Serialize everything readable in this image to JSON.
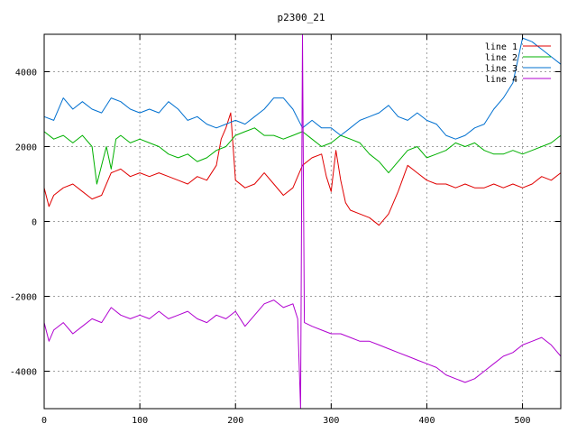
{
  "chart_data": {
    "type": "line",
    "title": "p2300_21",
    "xlabel": "",
    "ylabel": "",
    "xlim": [
      0,
      540
    ],
    "ylim": [
      -5000,
      5000
    ],
    "x_ticks": [
      0,
      100,
      200,
      300,
      400,
      500
    ],
    "y_ticks": [
      -4000,
      -2000,
      0,
      2000,
      4000
    ],
    "grid": true,
    "legend_position": "top-right",
    "series": [
      {
        "name": "line 1",
        "color": "#e00000",
        "points": [
          [
            0,
            900
          ],
          [
            5,
            400
          ],
          [
            10,
            700
          ],
          [
            20,
            900
          ],
          [
            30,
            1000
          ],
          [
            40,
            800
          ],
          [
            50,
            600
          ],
          [
            60,
            700
          ],
          [
            70,
            1300
          ],
          [
            80,
            1400
          ],
          [
            90,
            1200
          ],
          [
            100,
            1300
          ],
          [
            110,
            1200
          ],
          [
            120,
            1300
          ],
          [
            130,
            1200
          ],
          [
            140,
            1100
          ],
          [
            150,
            1000
          ],
          [
            160,
            1200
          ],
          [
            170,
            1100
          ],
          [
            180,
            1500
          ],
          [
            185,
            2200
          ],
          [
            190,
            2500
          ],
          [
            195,
            2900
          ],
          [
            200,
            1100
          ],
          [
            210,
            900
          ],
          [
            220,
            1000
          ],
          [
            230,
            1300
          ],
          [
            240,
            1000
          ],
          [
            250,
            700
          ],
          [
            260,
            900
          ],
          [
            265,
            1200
          ],
          [
            270,
            1500
          ],
          [
            280,
            1700
          ],
          [
            290,
            1800
          ],
          [
            295,
            1200
          ],
          [
            300,
            800
          ],
          [
            305,
            1900
          ],
          [
            310,
            1100
          ],
          [
            315,
            500
          ],
          [
            320,
            300
          ],
          [
            330,
            200
          ],
          [
            340,
            100
          ],
          [
            350,
            -100
          ],
          [
            360,
            200
          ],
          [
            370,
            800
          ],
          [
            380,
            1500
          ],
          [
            390,
            1300
          ],
          [
            400,
            1100
          ],
          [
            410,
            1000
          ],
          [
            420,
            1000
          ],
          [
            430,
            900
          ],
          [
            440,
            1000
          ],
          [
            450,
            900
          ],
          [
            460,
            900
          ],
          [
            470,
            1000
          ],
          [
            480,
            900
          ],
          [
            490,
            1000
          ],
          [
            500,
            900
          ],
          [
            510,
            1000
          ],
          [
            520,
            1200
          ],
          [
            530,
            1100
          ],
          [
            540,
            1300
          ]
        ]
      },
      {
        "name": "line 2",
        "color": "#00b000",
        "points": [
          [
            0,
            2400
          ],
          [
            10,
            2200
          ],
          [
            20,
            2300
          ],
          [
            30,
            2100
          ],
          [
            40,
            2300
          ],
          [
            50,
            2000
          ],
          [
            55,
            1000
          ],
          [
            60,
            1500
          ],
          [
            65,
            2000
          ],
          [
            70,
            1400
          ],
          [
            75,
            2200
          ],
          [
            80,
            2300
          ],
          [
            90,
            2100
          ],
          [
            100,
            2200
          ],
          [
            110,
            2100
          ],
          [
            120,
            2000
          ],
          [
            130,
            1800
          ],
          [
            140,
            1700
          ],
          [
            150,
            1800
          ],
          [
            160,
            1600
          ],
          [
            170,
            1700
          ],
          [
            180,
            1900
          ],
          [
            190,
            2000
          ],
          [
            200,
            2300
          ],
          [
            210,
            2400
          ],
          [
            220,
            2500
          ],
          [
            230,
            2300
          ],
          [
            240,
            2300
          ],
          [
            250,
            2200
          ],
          [
            260,
            2300
          ],
          [
            270,
            2400
          ],
          [
            280,
            2200
          ],
          [
            290,
            2000
          ],
          [
            300,
            2100
          ],
          [
            310,
            2300
          ],
          [
            320,
            2200
          ],
          [
            330,
            2100
          ],
          [
            340,
            1800
          ],
          [
            350,
            1600
          ],
          [
            360,
            1300
          ],
          [
            370,
            1600
          ],
          [
            380,
            1900
          ],
          [
            390,
            2000
          ],
          [
            400,
            1700
          ],
          [
            410,
            1800
          ],
          [
            420,
            1900
          ],
          [
            430,
            2100
          ],
          [
            440,
            2000
          ],
          [
            450,
            2100
          ],
          [
            460,
            1900
          ],
          [
            470,
            1800
          ],
          [
            480,
            1800
          ],
          [
            490,
            1900
          ],
          [
            500,
            1800
          ],
          [
            510,
            1900
          ],
          [
            520,
            2000
          ],
          [
            530,
            2100
          ],
          [
            540,
            2300
          ]
        ]
      },
      {
        "name": "line 3",
        "color": "#0070d0",
        "points": [
          [
            0,
            2800
          ],
          [
            10,
            2700
          ],
          [
            20,
            3300
          ],
          [
            30,
            3000
          ],
          [
            40,
            3200
          ],
          [
            50,
            3000
          ],
          [
            60,
            2900
          ],
          [
            70,
            3300
          ],
          [
            80,
            3200
          ],
          [
            90,
            3000
          ],
          [
            100,
            2900
          ],
          [
            110,
            3000
          ],
          [
            120,
            2900
          ],
          [
            130,
            3200
          ],
          [
            140,
            3000
          ],
          [
            150,
            2700
          ],
          [
            160,
            2800
          ],
          [
            170,
            2600
          ],
          [
            180,
            2500
          ],
          [
            190,
            2600
          ],
          [
            200,
            2700
          ],
          [
            210,
            2600
          ],
          [
            220,
            2800
          ],
          [
            230,
            3000
          ],
          [
            240,
            3300
          ],
          [
            250,
            3300
          ],
          [
            260,
            3000
          ],
          [
            270,
            2500
          ],
          [
            280,
            2700
          ],
          [
            290,
            2500
          ],
          [
            300,
            2500
          ],
          [
            310,
            2300
          ],
          [
            320,
            2500
          ],
          [
            330,
            2700
          ],
          [
            340,
            2800
          ],
          [
            350,
            2900
          ],
          [
            360,
            3100
          ],
          [
            370,
            2800
          ],
          [
            380,
            2700
          ],
          [
            390,
            2900
          ],
          [
            400,
            2700
          ],
          [
            410,
            2600
          ],
          [
            420,
            2300
          ],
          [
            430,
            2200
          ],
          [
            440,
            2300
          ],
          [
            450,
            2500
          ],
          [
            460,
            2600
          ],
          [
            470,
            3000
          ],
          [
            480,
            3300
          ],
          [
            490,
            3700
          ],
          [
            500,
            4900
          ],
          [
            510,
            4800
          ],
          [
            520,
            4600
          ],
          [
            530,
            4400
          ],
          [
            540,
            4200
          ]
        ]
      },
      {
        "name": "line 4",
        "color": "#b000d0",
        "points": [
          [
            0,
            -2700
          ],
          [
            5,
            -3200
          ],
          [
            10,
            -2900
          ],
          [
            20,
            -2700
          ],
          [
            30,
            -3000
          ],
          [
            40,
            -2800
          ],
          [
            50,
            -2600
          ],
          [
            60,
            -2700
          ],
          [
            70,
            -2300
          ],
          [
            80,
            -2500
          ],
          [
            90,
            -2600
          ],
          [
            100,
            -2500
          ],
          [
            110,
            -2600
          ],
          [
            120,
            -2400
          ],
          [
            130,
            -2600
          ],
          [
            140,
            -2500
          ],
          [
            150,
            -2400
          ],
          [
            160,
            -2600
          ],
          [
            170,
            -2700
          ],
          [
            180,
            -2500
          ],
          [
            190,
            -2600
          ],
          [
            200,
            -2400
          ],
          [
            210,
            -2800
          ],
          [
            220,
            -2500
          ],
          [
            230,
            -2200
          ],
          [
            240,
            -2100
          ],
          [
            250,
            -2300
          ],
          [
            260,
            -2200
          ],
          [
            265,
            -2600
          ],
          [
            268,
            -5000
          ],
          [
            270,
            5000
          ],
          [
            272,
            -2700
          ],
          [
            280,
            -2800
          ],
          [
            290,
            -2900
          ],
          [
            300,
            -3000
          ],
          [
            310,
            -3000
          ],
          [
            320,
            -3100
          ],
          [
            330,
            -3200
          ],
          [
            340,
            -3200
          ],
          [
            350,
            -3300
          ],
          [
            360,
            -3400
          ],
          [
            370,
            -3500
          ],
          [
            380,
            -3600
          ],
          [
            390,
            -3700
          ],
          [
            400,
            -3800
          ],
          [
            410,
            -3900
          ],
          [
            420,
            -4100
          ],
          [
            430,
            -4200
          ],
          [
            440,
            -4300
          ],
          [
            450,
            -4200
          ],
          [
            460,
            -4000
          ],
          [
            470,
            -3800
          ],
          [
            480,
            -3600
          ],
          [
            490,
            -3500
          ],
          [
            500,
            -3300
          ],
          [
            510,
            -3200
          ],
          [
            520,
            -3100
          ],
          [
            530,
            -3300
          ],
          [
            540,
            -3600
          ]
        ]
      }
    ]
  }
}
